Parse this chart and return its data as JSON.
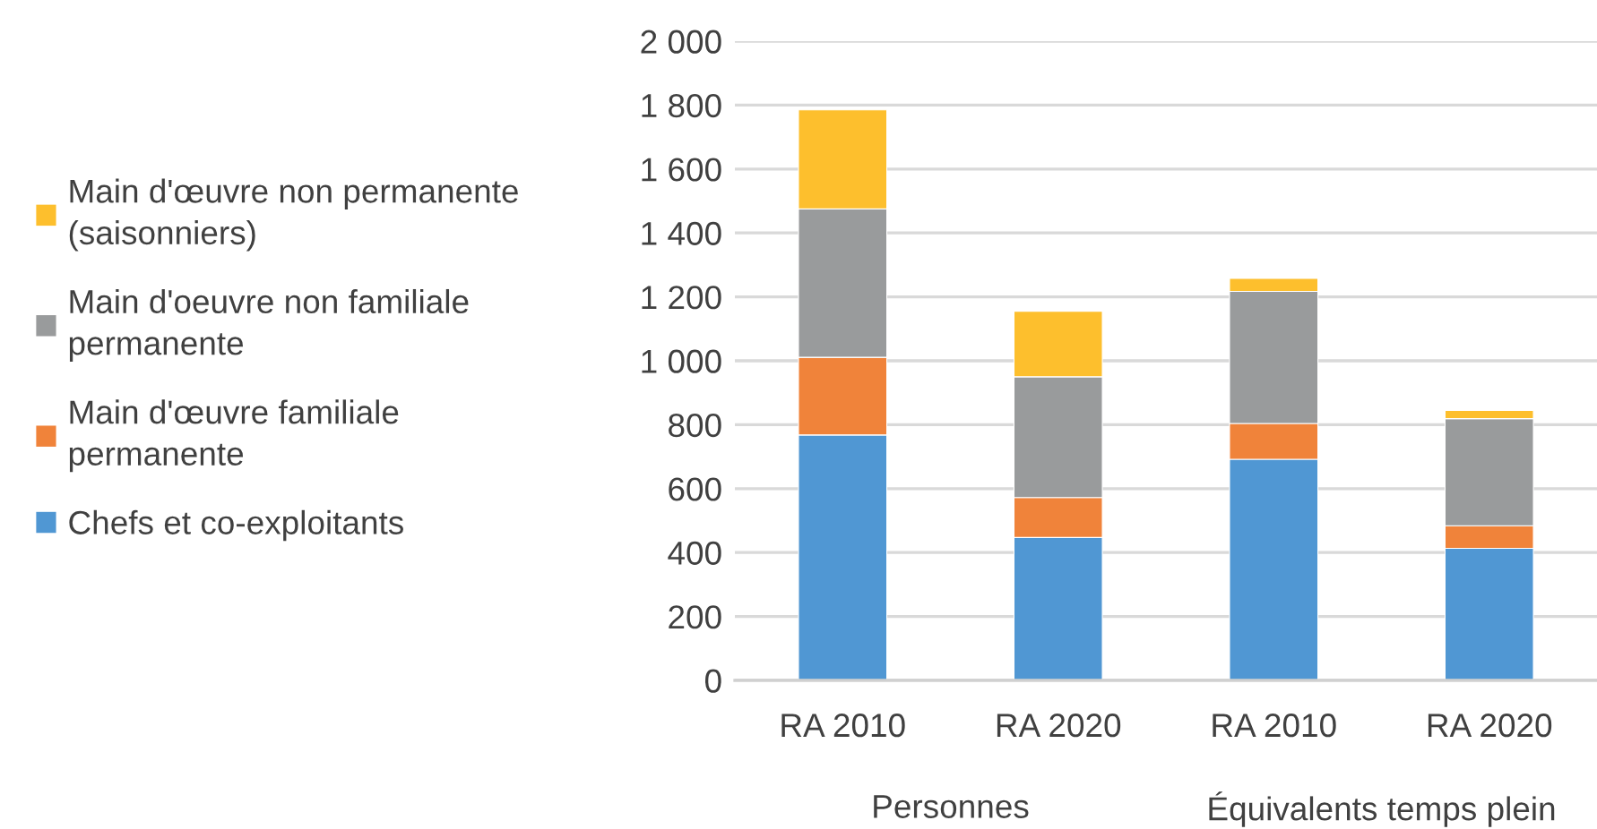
{
  "chart_data": {
    "type": "bar",
    "stacked": true,
    "categories": [
      "RA 2010",
      "RA 2020",
      "RA 2010",
      "RA 2020"
    ],
    "series": [
      {
        "name": "Chefs et co-exploitants",
        "color": "#5097d3",
        "values": [
          768,
          447,
          692,
          413
        ]
      },
      {
        "name": "Main d'œuvre familiale permanente",
        "color": "#f0833a",
        "values": [
          243,
          125,
          112,
          71
        ]
      },
      {
        "name": "Main d'oeuvre non familiale permanente",
        "color": "#999b9c",
        "values": [
          464,
          378,
          413,
          335
        ]
      },
      {
        "name": "Main d'œuvre non permanente (saisonniers)",
        "color": "#fdbf2d",
        "values": [
          310,
          205,
          41,
          26
        ]
      }
    ],
    "ylim": [
      0,
      2000
    ],
    "yticks": [
      0,
      200,
      400,
      600,
      800,
      {
        "value": 1000,
        "label": "1 000"
      },
      {
        "value": 1200,
        "label": "1 200"
      },
      {
        "value": 1400,
        "label": "1 400"
      },
      {
        "value": 1600,
        "label": "1 600"
      },
      {
        "value": 1800,
        "label": "1 800"
      },
      {
        "value": 2000,
        "label": "2 000"
      }
    ],
    "grid": "y",
    "legend": "left",
    "annotations": [
      "Personnes",
      "Équivalents temps plein"
    ]
  }
}
